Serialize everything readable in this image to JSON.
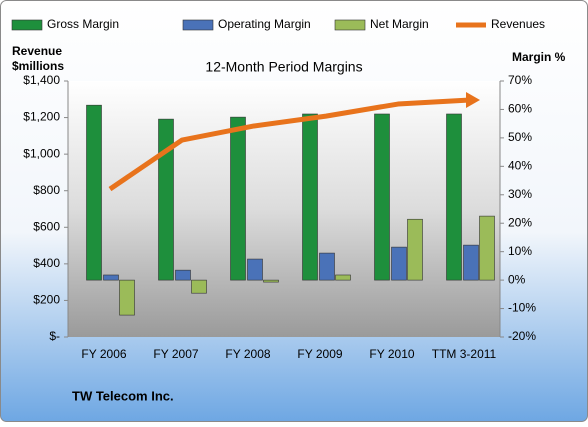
{
  "chart_data": {
    "type": "bar",
    "title": "12-Month Period Margins",
    "y_label": "Revenue $millions",
    "y2_label": "Margin %",
    "footer": "TW Telecom Inc.",
    "categories": [
      "FY 2006",
      "FY 2007",
      "FY 2008",
      "FY 2009",
      "FY 2010",
      "TTM 3-2011"
    ],
    "series": [
      {
        "name": "Gross Margin",
        "color": "#1e8f3c",
        "axis": "y2",
        "values": [
          61.5,
          56.6,
          57.3,
          58.4,
          58.4,
          58.4
        ]
      },
      {
        "name": "Operating Margin",
        "color": "#4a72b8",
        "axis": "y2",
        "values": [
          1.8,
          3.5,
          7.4,
          9.5,
          11.6,
          12.3
        ]
      },
      {
        "name": "Net Margin",
        "color": "#9bbb59",
        "axis": "y2",
        "values": [
          -12.3,
          -4.6,
          -0.7,
          1.8,
          21.4,
          22.5
        ]
      },
      {
        "name": "Revenues",
        "color": "#e8731c",
        "type": "line",
        "values": [
          809,
          1077,
          1154,
          1208,
          1274,
          1296
        ]
      }
    ],
    "ylim": [
      0,
      1400
    ],
    "yticks": [
      {
        "value": 0,
        "label": "$-"
      },
      {
        "value": 200,
        "label": "$200"
      },
      {
        "value": 400,
        "label": "$400"
      },
      {
        "value": 600,
        "label": "$600"
      },
      {
        "value": 800,
        "label": "$800"
      },
      {
        "value": 1000,
        "label": "$1,000"
      },
      {
        "value": 1200,
        "label": "$1,200"
      },
      {
        "value": 1400,
        "label": "$1,400"
      }
    ],
    "y2lim": [
      -20,
      70
    ],
    "y2ticks": [
      {
        "value": -20,
        "label": "-20%"
      },
      {
        "value": -10,
        "label": "-10%"
      },
      {
        "value": 0,
        "label": "0%"
      },
      {
        "value": 10,
        "label": "10%"
      },
      {
        "value": 20,
        "label": "20%"
      },
      {
        "value": 30,
        "label": "30%"
      },
      {
        "value": 40,
        "label": "40%"
      },
      {
        "value": 50,
        "label": "50%"
      },
      {
        "value": 60,
        "label": "60%"
      },
      {
        "value": 70,
        "label": "70%"
      }
    ],
    "grid": false,
    "legend": "top"
  }
}
